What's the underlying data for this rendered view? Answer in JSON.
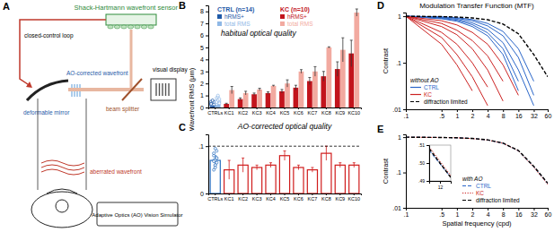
{
  "diagram": {
    "panel": "A",
    "sensor": "Shack-Hartmann wavefront sensor",
    "loop": "closed-control loop",
    "mirror": "deformable mirror",
    "corrected": "AO-corrected wavefront",
    "splitter": "beam splitter",
    "display": "visual display",
    "aberrated": "aberrated wavefront",
    "title": "Adaptive Optics (AO) Vision Simulator"
  },
  "chart_data": [
    {
      "panel": "B",
      "type": "bar",
      "title": "habitual optical quality",
      "y_label": "Wavefront RMS (μm)",
      "categories": [
        "CTRLs",
        "KC1",
        "KC2",
        "KC3",
        "KC4",
        "KC5",
        "KC6",
        "KC7",
        "KC8",
        "KC9",
        "KC10"
      ],
      "series": [
        {
          "name": "hRMS+",
          "colors": [
            "#1f5aa8",
            "#c2141c",
            "#c2141c",
            "#c2141c",
            "#c2141c",
            "#c2141c",
            "#c2141c",
            "#c2141c",
            "#c2141c",
            "#c2141c",
            "#c2141c"
          ],
          "values": [
            0.35,
            0.3,
            0.7,
            1.1,
            1.2,
            1.35,
            1.65,
            2.2,
            2.6,
            3.2,
            4.5
          ],
          "errors": [
            0.15,
            0.05,
            0.1,
            0.1,
            0.1,
            0.15,
            0.2,
            0.3,
            0.4,
            0.6,
            1.1
          ],
          "points": [
            0.2,
            0.25,
            0.3,
            0.3,
            0.35,
            0.35,
            0.4,
            0.4,
            0.45,
            0.5,
            0.55,
            0.25,
            0.3,
            0.6
          ]
        },
        {
          "name": "total RMS",
          "colors": [
            "#8fb8e6",
            "#f2aaa0",
            "#f2aaa0",
            "#f2aaa0",
            "#f2aaa0",
            "#f2aaa0",
            "#f2aaa0",
            "#f2aaa0",
            "#f2aaa0",
            "#f2aaa0",
            "#f2aaa0"
          ],
          "values": [
            0.5,
            1.45,
            1.2,
            1.5,
            1.8,
            2.0,
            3.0,
            3.0,
            5.0,
            4.8,
            7.9
          ],
          "errors": [
            0.2,
            0.3,
            0.15,
            0.1,
            0.05,
            0.3,
            0.15,
            0.4,
            0.05,
            1.0,
            0.3
          ],
          "points": [
            0.3,
            0.4,
            0.45,
            0.5,
            0.5,
            0.55,
            0.6,
            0.6,
            0.7,
            0.8,
            0.9,
            0.35,
            0.45,
            1.0
          ]
        }
      ],
      "legend_groups": [
        {
          "title": "CTRL (n=14)",
          "colors": [
            "#1f5aa8",
            "#8fb8e6"
          ]
        },
        {
          "title": "KC (n=10)",
          "colors": [
            "#c2141c",
            "#f2aaa0"
          ]
        }
      ],
      "legend": "upper left",
      "ylim": [
        0,
        8.5
      ],
      "yticks": [
        0,
        1,
        2,
        3,
        4,
        5,
        6,
        7,
        8
      ]
    },
    {
      "panel": "C",
      "type": "bar",
      "title": "AO-corrected optical quality",
      "categories": [
        "CTRLs",
        "KC1",
        "KC2",
        "KC3",
        "KC4",
        "KC5",
        "KC6",
        "KC7",
        "KC8",
        "KC9",
        "KC10"
      ],
      "values": [
        0.07,
        0.05,
        0.06,
        0.055,
        0.06,
        0.08,
        0.055,
        0.05,
        0.085,
        0.06,
        0.06
      ],
      "errors": [
        0.01,
        0.02,
        0.015,
        0.005,
        0.005,
        0.01,
        0.005,
        0.005,
        0.015,
        0.005,
        0.005
      ],
      "colors": [
        "#2a6fbf",
        "#d01c1c",
        "#d01c1c",
        "#d01c1c",
        "#d01c1c",
        "#d01c1c",
        "#d01c1c",
        "#d01c1c",
        "#d01c1c",
        "#d01c1c",
        "#d01c1c"
      ],
      "points": [
        0.05,
        0.06,
        0.065,
        0.07,
        0.07,
        0.075,
        0.08,
        0.06,
        0.09,
        0.085,
        0.055,
        0.075,
        0.068,
        0.095
      ],
      "threshold": 0.1,
      "ylim": [
        0,
        0.125
      ],
      "yticks": [
        0,
        {
          "value": 0.1,
          "label": ".1"
        }
      ]
    },
    {
      "panel": "D",
      "type": "line",
      "title": "Modulation Transfer Function (MTF)",
      "y_label": "Contrast",
      "legend_title": "without AO",
      "legend": "lower left",
      "log": true,
      "x": [
        0.1,
        0.5,
        1,
        2,
        4,
        8,
        16,
        32,
        60
      ],
      "xlim": [
        0.1,
        60
      ],
      "xticks": [
        {
          "value": 0.1,
          "label": ".1"
        },
        {
          "value": 0.5,
          "label": ".5"
        },
        1,
        2,
        4,
        8,
        16,
        32,
        60
      ],
      "ylim": [
        0.01,
        1.2
      ],
      "yticks": [
        {
          "value": 0.01,
          "label": ".01"
        },
        {
          "value": 0.1,
          "label": ".1"
        },
        1
      ],
      "series": [
        {
          "name": "CTRL",
          "color": "#2a66c9",
          "line_style": "solid",
          "values": [
            1,
            0.97,
            0.93,
            0.85,
            0.7,
            0.47,
            0.2,
            0.04,
            null
          ]
        },
        {
          "color": "#2a66c9",
          "line_style": "solid",
          "values": [
            1,
            0.95,
            0.9,
            0.8,
            0.62,
            0.38,
            0.13,
            0.02,
            null
          ]
        },
        {
          "color": "#2a66c9",
          "line_style": "solid",
          "values": [
            1,
            0.93,
            0.86,
            0.72,
            0.52,
            0.27,
            0.07,
            0.012,
            null
          ]
        },
        {
          "color": "#2a66c9",
          "line_style": "solid",
          "values": [
            1,
            0.9,
            0.82,
            0.66,
            0.44,
            0.2,
            0.04,
            null,
            null
          ]
        },
        {
          "color": "#2a66c9",
          "line_style": "solid",
          "values": [
            1,
            0.88,
            0.78,
            0.6,
            0.38,
            0.15,
            0.025,
            null,
            null
          ]
        },
        {
          "name": "KC",
          "color": "#cc2222",
          "line_style": "solid",
          "values": [
            1,
            0.8,
            0.65,
            0.45,
            0.25,
            0.09,
            0.02,
            null,
            null
          ]
        },
        {
          "color": "#cc2222",
          "line_style": "solid",
          "values": [
            1,
            0.7,
            0.5,
            0.3,
            0.14,
            0.04,
            null,
            null,
            null
          ]
        },
        {
          "color": "#cc2222",
          "line_style": "solid",
          "values": [
            1,
            0.6,
            0.4,
            0.2,
            0.07,
            0.015,
            null,
            null,
            null
          ]
        },
        {
          "color": "#cc2222",
          "line_style": "solid",
          "values": [
            1,
            0.45,
            0.25,
            0.1,
            0.03,
            null,
            null,
            null,
            null
          ]
        },
        {
          "color": "#cc2222",
          "line_style": "solid",
          "values": [
            1,
            0.35,
            0.15,
            0.05,
            0.012,
            null,
            null,
            null,
            null
          ]
        },
        {
          "color": "#cc2222",
          "line_style": "solid",
          "values": [
            1,
            0.25,
            0.09,
            0.025,
            null,
            null,
            null,
            null,
            null
          ]
        },
        {
          "name": "diffraction limited",
          "color": "#000000",
          "line_style": "dashed",
          "values": [
            1,
            0.98,
            0.96,
            0.92,
            0.84,
            0.68,
            0.42,
            0.15,
            0.05
          ]
        }
      ]
    },
    {
      "panel": "E",
      "type": "line",
      "y_label": "Contrast",
      "x_label": "Spatial frequency (cpd)",
      "legend_title": "with AO",
      "legend": "lower left",
      "log": true,
      "x": [
        0.1,
        0.5,
        1,
        2,
        4,
        8,
        16,
        32,
        60
      ],
      "xlim": [
        0.1,
        60
      ],
      "xticks": [
        {
          "value": 0.1,
          "label": ".1"
        },
        {
          "value": 0.5,
          "label": ".5"
        },
        1,
        2,
        4,
        8,
        16,
        32,
        60
      ],
      "ylim": [
        0.01,
        1.2
      ],
      "yticks": [
        {
          "value": 0.01,
          "label": ".01"
        },
        {
          "value": 0.1,
          "label": ".1"
        },
        1
      ],
      "series": [
        {
          "name": "CTRL",
          "color": "#2a66c9",
          "line_style": "dashed",
          "values": [
            1,
            0.98,
            0.96,
            0.92,
            0.83,
            0.67,
            0.41,
            0.145,
            0.048
          ]
        },
        {
          "name": "KC",
          "color": "#cc2222",
          "line_style": "dotted",
          "values": [
            1,
            0.98,
            0.96,
            0.91,
            0.83,
            0.67,
            0.41,
            0.14,
            0.046
          ]
        },
        {
          "name": "diffraction limited",
          "color": "#000000",
          "line_style": "dashed",
          "values": [
            1,
            0.98,
            0.96,
            0.92,
            0.84,
            0.68,
            0.42,
            0.15,
            0.05
          ]
        }
      ]
    },
    {
      "type": "line",
      "x": [
        11.8,
        12,
        12.2
      ],
      "xlim": [
        11.8,
        12.2
      ],
      "xticks": [
        12
      ],
      "ylim": [
        0.49,
        0.51
      ],
      "yticks": [
        {
          "value": 0.49,
          "label": ".49"
        },
        {
          "value": 0.5,
          "label": ".50"
        },
        {
          "value": 0.51,
          "label": ".51"
        }
      ],
      "series": [
        {
          "color": "#2a66c9",
          "line_style": "dashed",
          "values": [
            0.507,
            0.4995,
            0.492
          ]
        },
        {
          "color": "#cc2222",
          "line_style": "dotted",
          "values": [
            0.509,
            0.501,
            0.493
          ]
        },
        {
          "color": "#000000",
          "line_style": "dashed",
          "values": [
            0.508,
            0.5,
            0.492
          ]
        }
      ]
    }
  ]
}
